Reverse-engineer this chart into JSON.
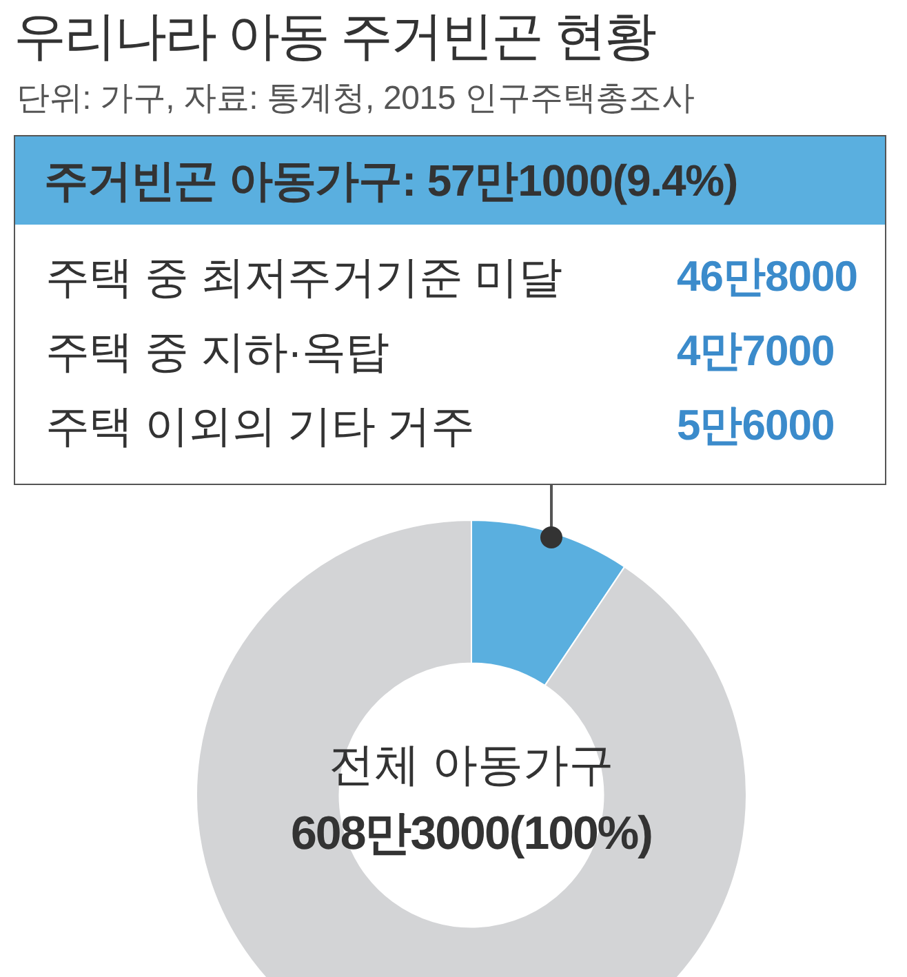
{
  "chart_data": {
    "type": "donut",
    "title": "우리나라 아동 주거빈곤 현황",
    "subtitle": "단위: 가구, 자료: 통계청, 2015 인구주택총조사",
    "categories": [
      null,
      null
    ],
    "values": [
      9.4,
      90.6
    ],
    "colors": [
      "#5aafdf",
      "#d3d4d6"
    ],
    "annotations": [
      "주거빈곤 아동가구: 57만1000(9.4%)",
      "주택 중 최저주거기준 미달",
      "46만8000",
      "주택 중 지하·옥탑",
      "4만7000",
      "주택 이외의 기타 거주",
      "5만6000",
      "전체 아동가구",
      "608만3000(100%)"
    ]
  }
}
